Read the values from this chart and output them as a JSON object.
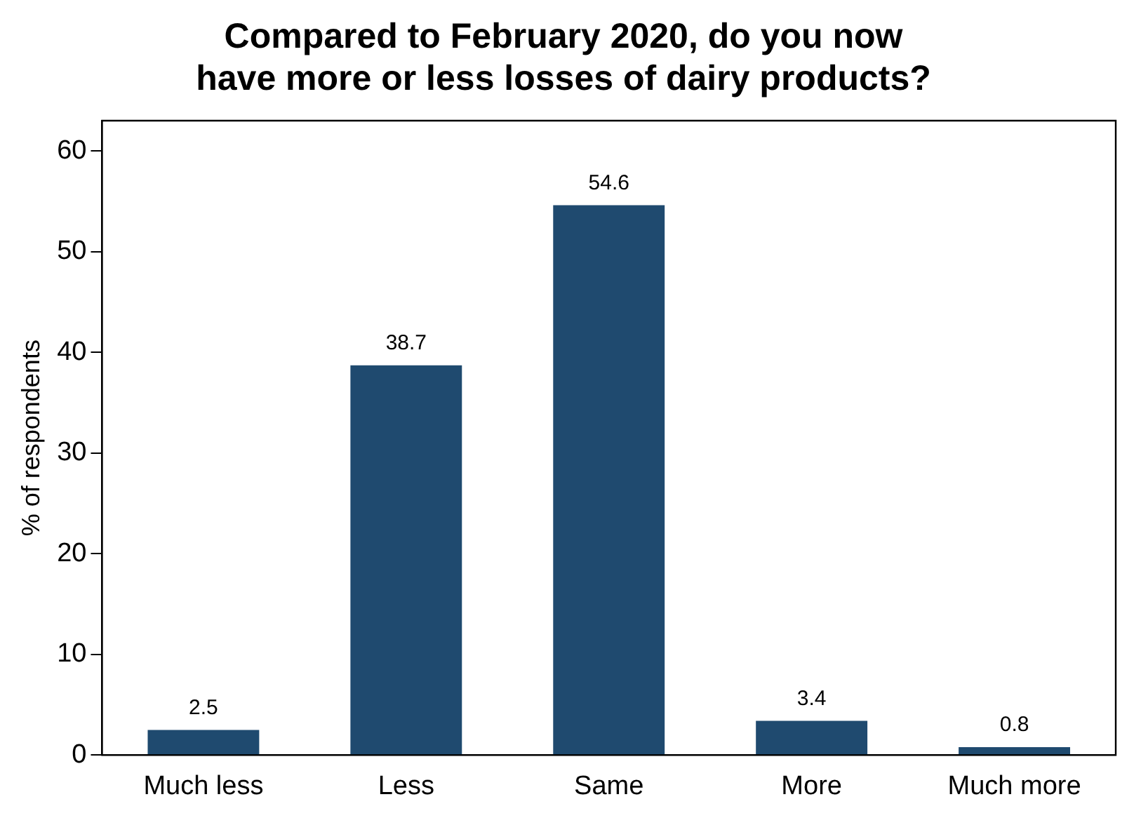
{
  "chart_data": {
    "type": "bar",
    "title": "Compared to February 2020, do you now\nhave more or less losses of dairy products?",
    "ylabel": "% of respondents",
    "categories": [
      "Much less",
      "Less",
      "Same",
      "More",
      "Much more"
    ],
    "values": [
      2.5,
      38.7,
      54.6,
      3.4,
      0.8
    ],
    "color": "#1f4a6f",
    "ylim": [
      0,
      63
    ],
    "yticks": [
      0,
      10,
      20,
      30,
      40,
      50,
      60
    ],
    "grid": false,
    "legend": false,
    "data_labels": true
  }
}
